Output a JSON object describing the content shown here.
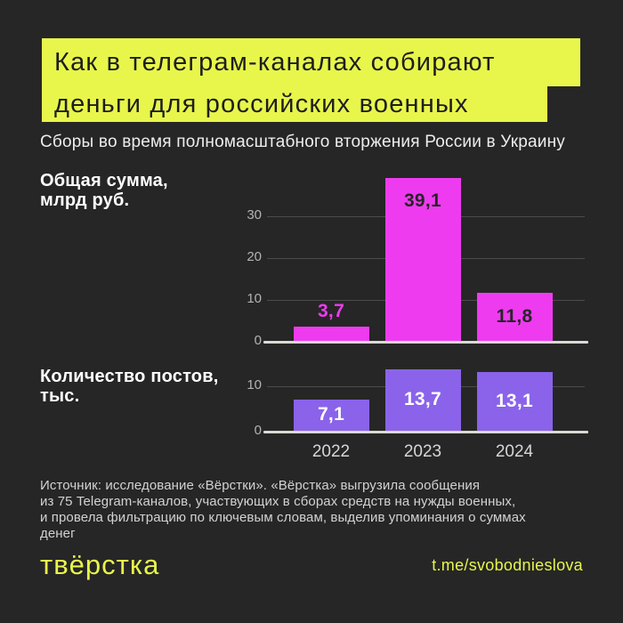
{
  "theme": {
    "background": "#262626",
    "accent_yellow": "#e8f64b",
    "magenta": "#ee3bf0",
    "purple": "#8a63ea",
    "text_white": "#ffffff"
  },
  "header": {
    "title_line1": "Как в телеграм-каналах собирают",
    "title_line2": "деньги для российских военных",
    "subtitle": "Сборы во время полномасштабного вторжения России в Украину"
  },
  "chart_data": [
    {
      "type": "bar",
      "title": "Общая сумма, млрд руб.",
      "title_lines": [
        "Общая сумма,",
        "млрд руб."
      ],
      "categories": [
        "2022",
        "2023",
        "2024"
      ],
      "values": [
        3.7,
        39.1,
        11.8
      ],
      "value_labels": [
        "3,7",
        "39,1",
        "11,8"
      ],
      "value_label_pos": [
        "above",
        "inside-top",
        "inside-center"
      ],
      "value_label_colors": [
        "#ee3bf0",
        "#262626",
        "#262626"
      ],
      "bar_color": "#ee3bf0",
      "yticks": [
        0,
        10,
        20,
        30
      ],
      "ylim": [
        0,
        40
      ],
      "grid": true,
      "show_year_labels": false
    },
    {
      "type": "bar",
      "title": "Количество постов, тыс.",
      "title_lines": [
        "Количество постов,",
        "тыс."
      ],
      "categories": [
        "2022",
        "2023",
        "2024"
      ],
      "values": [
        7.1,
        13.7,
        13.1
      ],
      "value_labels": [
        "7,1",
        "13,7",
        "13,1"
      ],
      "value_label_pos": [
        "inside-center",
        "inside-center",
        "inside-center"
      ],
      "value_label_colors": [
        "#ffffff",
        "#ffffff",
        "#ffffff"
      ],
      "bar_color": "#8a63ea",
      "yticks": [
        0,
        10
      ],
      "ylim": [
        0,
        14
      ],
      "grid": true,
      "show_year_labels": true
    }
  ],
  "source": {
    "lines": [
      "Источник: исследование «Вёрстки». «Вёрстка» выгрузила сообщения",
      "из 75 Telegram-каналов, участвующих в сборах средств на нужды военных,",
      "и провела фильтрацию по ключевым словам, выделив упоминания о суммах",
      "денег"
    ]
  },
  "footer": {
    "logo": "твёрстка",
    "link": "t.me/svobodnieslova"
  }
}
